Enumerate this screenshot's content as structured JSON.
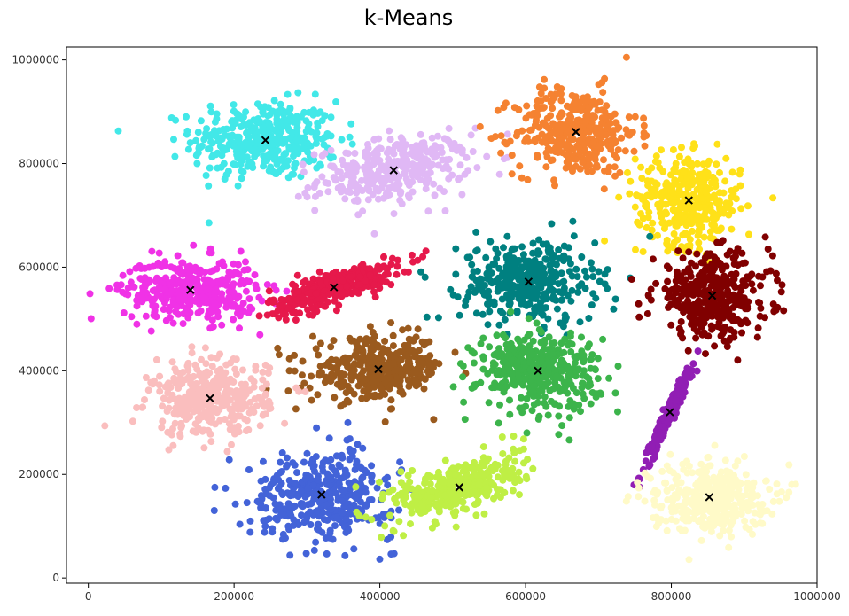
{
  "chart_data": {
    "type": "scatter",
    "title": "k-Means",
    "xlabel": "",
    "ylabel": "",
    "xlim": [
      -30000,
      1000000
    ],
    "ylim": [
      -10000,
      1025000
    ],
    "xticks": [
      {
        "value": 0,
        "label": "0"
      },
      {
        "value": 200000,
        "label": "200000"
      },
      {
        "value": 400000,
        "label": "400000"
      },
      {
        "value": 600000,
        "label": "600000"
      },
      {
        "value": 800000,
        "label": "800000"
      },
      {
        "value": 1000000,
        "label": "1000000"
      }
    ],
    "yticks": [
      {
        "value": 0,
        "label": "0"
      },
      {
        "value": 200000,
        "label": "200000"
      },
      {
        "value": 400000,
        "label": "400000"
      },
      {
        "value": 600000,
        "label": "600000"
      },
      {
        "value": 800000,
        "label": "800000"
      },
      {
        "value": 1000000,
        "label": "1000000"
      }
    ],
    "grid": false,
    "legend": "none",
    "centroid_marker": "x",
    "centroid_color": "#000000",
    "clusters": [
      {
        "color": "#42e8e8",
        "centroid": [
          243000,
          845000
        ],
        "spread": [
          50000,
          38000
        ],
        "corr": 0.0,
        "n": 380
      },
      {
        "color": "#e0b8f5",
        "centroid": [
          419000,
          787000
        ],
        "spread": [
          52000,
          32000
        ],
        "corr": 0.3,
        "n": 340
      },
      {
        "color": "#f58231",
        "centroid": [
          669000,
          861000
        ],
        "spread": [
          42000,
          42000
        ],
        "corr": 0.0,
        "n": 360
      },
      {
        "color": "#ffe119",
        "centroid": [
          824000,
          729000
        ],
        "spread": [
          36000,
          44000
        ],
        "corr": -0.1,
        "n": 360
      },
      {
        "color": "#f032e6",
        "centroid": [
          140000,
          556000
        ],
        "spread": [
          46000,
          30000
        ],
        "corr": 0.0,
        "n": 360
      },
      {
        "color": "#e6194b",
        "centroid": [
          337000,
          561000
        ],
        "spread": [
          44000,
          24000
        ],
        "corr": 0.75,
        "n": 340
      },
      {
        "color": "#008080",
        "centroid": [
          604000,
          572000
        ],
        "spread": [
          46000,
          40000
        ],
        "corr": 0.0,
        "n": 360
      },
      {
        "color": "#800000",
        "centroid": [
          856000,
          545000
        ],
        "spread": [
          40000,
          40000
        ],
        "corr": 0.0,
        "n": 380
      },
      {
        "color": "#9a5a1e",
        "centroid": [
          398000,
          403000
        ],
        "spread": [
          46000,
          30000
        ],
        "corr": 0.1,
        "n": 360
      },
      {
        "color": "#3cb44b",
        "centroid": [
          617000,
          400000
        ],
        "spread": [
          42000,
          38000
        ],
        "corr": 0.0,
        "n": 380
      },
      {
        "color": "#fabebe",
        "centroid": [
          167000,
          347000
        ],
        "spread": [
          40000,
          36000
        ],
        "corr": 0.0,
        "n": 360
      },
      {
        "color": "#911eb4",
        "centroid": [
          798000,
          320000
        ],
        "spread": [
          16000,
          48000
        ],
        "corr": 0.97,
        "n": 260
      },
      {
        "color": "#4363d8",
        "centroid": [
          320000,
          161000
        ],
        "spread": [
          50000,
          42000
        ],
        "corr": 0.0,
        "n": 380
      },
      {
        "color": "#bfef45",
        "centroid": [
          509000,
          175000
        ],
        "spread": [
          44000,
          32000
        ],
        "corr": 0.55,
        "n": 360
      },
      {
        "color": "#fffac8",
        "centroid": [
          852000,
          156000
        ],
        "spread": [
          40000,
          34000
        ],
        "corr": 0.0,
        "n": 360
      }
    ]
  }
}
